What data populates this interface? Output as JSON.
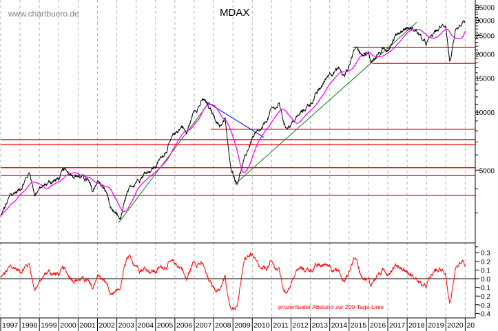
{
  "watermark": "www.chartbuero.de",
  "chart_data": [
    {
      "type": "line",
      "title": "MDAX",
      "yscale": "log",
      "ylim": [
        2000,
        37000
      ],
      "xlim": [
        1997,
        2021.5
      ],
      "grid": "vertical dashed at year boundaries",
      "yticks": [
        "5000",
        "10000",
        "15000",
        "20000",
        "25000",
        "30000",
        "35000"
      ],
      "series": [
        {
          "color": "#000000",
          "points": [
            [
              1997.0,
              2860
            ],
            [
              1997.5,
              3670
            ],
            [
              1998.0,
              3980
            ],
            [
              1998.5,
              4890
            ],
            [
              1998.75,
              3760
            ],
            [
              1999.0,
              3980
            ],
            [
              1999.5,
              4320
            ],
            [
              2000.0,
              4500
            ],
            [
              2000.25,
              4970
            ],
            [
              2000.5,
              4890
            ],
            [
              2001.0,
              4690
            ],
            [
              2001.5,
              4430
            ],
            [
              2001.75,
              3820
            ],
            [
              2002.0,
              4430
            ],
            [
              2002.5,
              3760
            ],
            [
              2002.75,
              2990
            ],
            [
              2003.2,
              2800
            ],
            [
              2003.5,
              3670
            ],
            [
              2004.0,
              4430
            ],
            [
              2004.5,
              4890
            ],
            [
              2005.0,
              5220
            ],
            [
              2005.5,
              6260
            ],
            [
              2006.0,
              7690
            ],
            [
              2006.4,
              8550
            ],
            [
              2006.6,
              7690
            ],
            [
              2007.0,
              10250
            ],
            [
              2007.5,
              11600
            ],
            [
              2007.8,
              10250
            ],
            [
              2008.0,
              9600
            ],
            [
              2008.3,
              8550
            ],
            [
              2008.6,
              9060
            ],
            [
              2008.85,
              5310
            ],
            [
              2009.2,
              4320
            ],
            [
              2009.5,
              5310
            ],
            [
              2009.75,
              6260
            ],
            [
              2010.0,
              7380
            ],
            [
              2010.5,
              8010
            ],
            [
              2011.0,
              10250
            ],
            [
              2011.4,
              10950
            ],
            [
              2011.7,
              8340
            ],
            [
              2012.0,
              8700
            ],
            [
              2012.5,
              9840
            ],
            [
              2013.0,
              11130
            ],
            [
              2013.5,
              13120
            ],
            [
              2014.0,
              16100
            ],
            [
              2014.5,
              16800
            ],
            [
              2014.75,
              15230
            ],
            [
              2015.0,
              17500
            ],
            [
              2015.3,
              21800
            ],
            [
              2015.6,
              20600
            ],
            [
              2016.0,
              20100
            ],
            [
              2016.1,
              18200
            ],
            [
              2016.5,
              20100
            ],
            [
              2017.0,
              21500
            ],
            [
              2017.5,
              25750
            ],
            [
              2018.0,
              27500
            ],
            [
              2018.5,
              26400
            ],
            [
              2018.95,
              22400
            ],
            [
              2019.5,
              26400
            ],
            [
              2020.0,
              28600
            ],
            [
              2020.2,
              18200
            ],
            [
              2020.5,
              25300
            ],
            [
              2020.8,
              27500
            ],
            [
              2021.0,
              29300
            ]
          ]
        },
        {
          "color": "#ff00ff",
          "kind": "200-day moving average"
        }
      ],
      "horizontal_lines": [
        {
          "value": 21700,
          "from": 2015.2,
          "color": "#ff0000"
        },
        {
          "value": 17900,
          "from": 2016.2,
          "color": "#ff0000"
        },
        {
          "value": 8150,
          "from": 2007.85,
          "color": "#ff0000"
        },
        {
          "value": 7200,
          "from": 1997,
          "color": "#ff0000"
        },
        {
          "value": 6800,
          "from": 1997,
          "color": "#ff0000"
        },
        {
          "value": 5150,
          "from": 1997,
          "color": "#ff0000"
        },
        {
          "value": 4700,
          "from": 1997,
          "color": "#ff0000"
        },
        {
          "value": 3700,
          "from": 1997,
          "color": "#ff0000"
        }
      ],
      "trend_lines": [
        {
          "from": [
            2007.4,
            11700
          ],
          "to": [
            2010.6,
            7400
          ],
          "color": "#0000ff"
        },
        {
          "from": [
            2003.1,
            2670
          ],
          "to": [
            2007.8,
            11300
          ],
          "color": "#008000"
        },
        {
          "from": [
            2009.1,
            4220
          ],
          "to": [
            2018.5,
            29300
          ],
          "color": "#008000"
        }
      ]
    },
    {
      "type": "line",
      "ylim": [
        -0.45,
        0.38
      ],
      "yticks": [
        "0.3",
        "0.2",
        "0.1",
        "0.0",
        "-0.1",
        "-0.2",
        "-0.3",
        "-0.4"
      ],
      "annotation": "prozentualer Abstand zur 200-Tage-Linie",
      "series": [
        {
          "color": "#ff0000",
          "kind": "distance to 200-day line"
        }
      ],
      "zero_line_color": "#000000"
    }
  ],
  "xaxis": {
    "ticks": [
      "1997",
      "1998",
      "1999",
      "2000",
      "2001",
      "2002",
      "2003",
      "2004",
      "2005",
      "2006",
      "2007",
      "2008",
      "2009",
      "2010",
      "2011",
      "2012",
      "2013",
      "2014",
      "2015",
      "2016",
      "2017",
      "2018",
      "2019",
      "2020",
      "20"
    ]
  }
}
